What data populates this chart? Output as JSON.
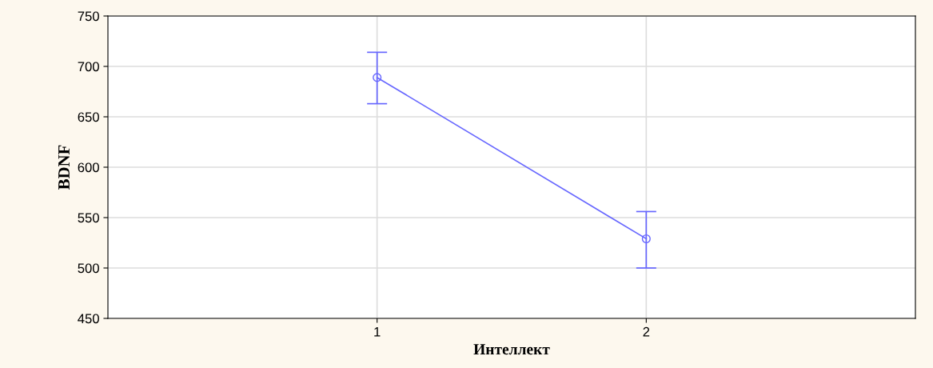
{
  "chart_data": {
    "type": "line",
    "xlabel": "Интеллект",
    "ylabel": "BDNF",
    "x": [
      1,
      2
    ],
    "series": [
      {
        "color": "#6666ff",
        "values": [
          689,
          529
        ],
        "errors": [
          [
            663,
            714
          ],
          [
            500,
            556
          ]
        ]
      }
    ],
    "xlim": [
      0,
      3
    ],
    "xticks": [
      1,
      2
    ],
    "ylim": [
      450,
      750
    ],
    "yticks": [
      450,
      500,
      550,
      600,
      650,
      700,
      750
    ],
    "grid": true,
    "marker": "circle",
    "line_style": "solid"
  }
}
